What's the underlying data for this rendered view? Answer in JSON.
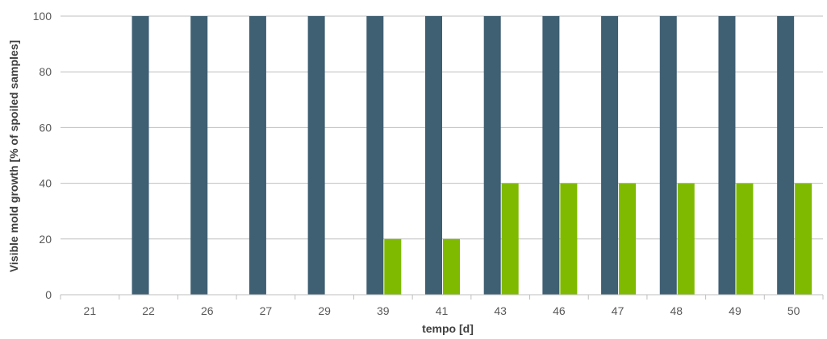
{
  "chart_data": {
    "type": "bar",
    "title": "",
    "xlabel": "tempo [d]",
    "ylabel": "Visible mold growth [% of spoiled samples]",
    "categories": [
      "21",
      "22",
      "26",
      "27",
      "29",
      "39",
      "41",
      "43",
      "46",
      "47",
      "48",
      "49",
      "50"
    ],
    "series": [
      {
        "color": "#3f5f73",
        "values": [
          0,
          100,
          100,
          100,
          100,
          100,
          100,
          100,
          100,
          100,
          100,
          100,
          100
        ]
      },
      {
        "color": "#7fba00",
        "values": [
          0,
          0,
          0,
          0,
          0,
          20,
          20,
          40,
          40,
          40,
          40,
          40,
          40
        ]
      }
    ],
    "ylim": [
      0,
      100
    ],
    "yticks": [
      0,
      20,
      40,
      60,
      80,
      100
    ],
    "grid": true,
    "legend": "none"
  }
}
